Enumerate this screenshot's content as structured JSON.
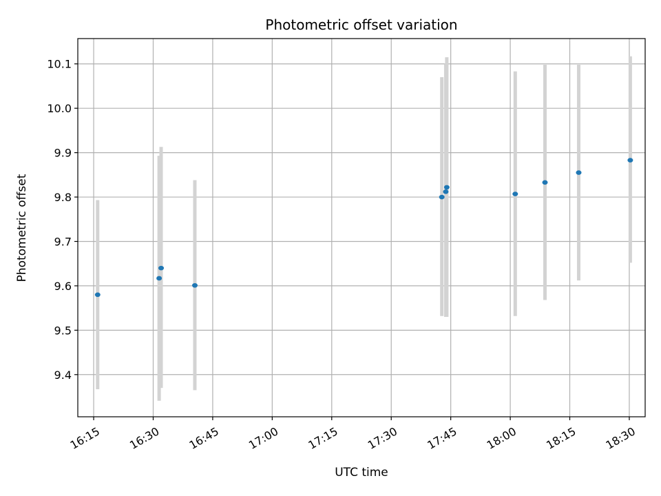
{
  "chart_data": {
    "type": "scatter",
    "title": "Photometric offset variation",
    "xlabel": "UTC time",
    "ylabel": "Photometric offset",
    "grid": true,
    "x_axis": {
      "type": "time",
      "range": [
        "16:11",
        "18:34"
      ],
      "ticks": [
        "16:15",
        "16:30",
        "16:45",
        "17:00",
        "17:15",
        "17:30",
        "17:45",
        "18:00",
        "18:15",
        "18:30"
      ]
    },
    "y_axis": {
      "range": [
        9.305,
        10.157
      ],
      "ticks": [
        "9.4",
        "9.5",
        "9.6",
        "9.7",
        "9.8",
        "9.9",
        "10.0",
        "10.1"
      ]
    },
    "marker_color": "#1f77b4",
    "errorbar_color": "#d3d3d3",
    "points": [
      {
        "x": "16:16",
        "y": 9.58,
        "ylow": 9.367,
        "yhigh": 9.793
      },
      {
        "x": "16:31:30",
        "y": 9.617,
        "ylow": 9.341,
        "yhigh": 9.893
      },
      {
        "x": "16:32",
        "y": 9.64,
        "ylow": 9.37,
        "yhigh": 9.913
      },
      {
        "x": "16:40:30",
        "y": 9.601,
        "ylow": 9.365,
        "yhigh": 9.838
      },
      {
        "x": "17:42:45",
        "y": 9.8,
        "ylow": 9.532,
        "yhigh": 10.07
      },
      {
        "x": "17:43:45",
        "y": 9.812,
        "ylow": 9.53,
        "yhigh": 10.1
      },
      {
        "x": "17:44",
        "y": 9.822,
        "ylow": 9.53,
        "yhigh": 10.115
      },
      {
        "x": "18:01:15",
        "y": 9.807,
        "ylow": 9.532,
        "yhigh": 10.083
      },
      {
        "x": "18:08:45",
        "y": 9.833,
        "ylow": 9.568,
        "yhigh": 10.098
      },
      {
        "x": "18:17:15",
        "y": 9.855,
        "ylow": 9.612,
        "yhigh": 10.098
      },
      {
        "x": "18:30:15",
        "y": 9.883,
        "ylow": 9.652,
        "yhigh": 10.117
      }
    ]
  }
}
